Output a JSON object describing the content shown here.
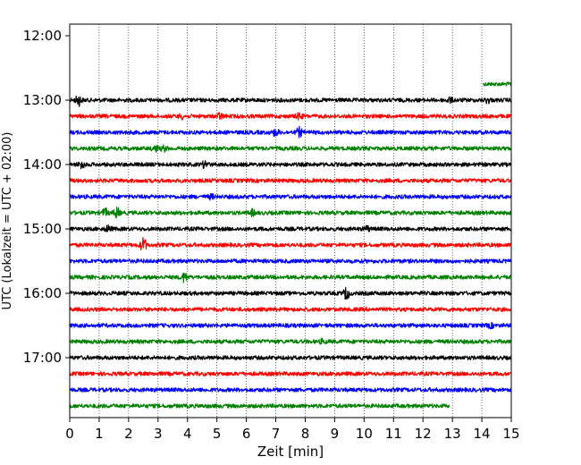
{
  "chart_data": {
    "type": "line",
    "title": "",
    "xlabel": "Zeit  [min]",
    "ylabel": "UTC (Lokalzeit = UTC + 02:00)",
    "xlim": [
      0,
      15
    ],
    "x_ticks": [
      "0",
      "1",
      "2",
      "3",
      "4",
      "5",
      "6",
      "7",
      "8",
      "9",
      "10",
      "11",
      "12",
      "13",
      "14",
      "15"
    ],
    "y_ticks": [
      "12:00",
      "13:00",
      "14:00",
      "15:00",
      "16:00",
      "17:00"
    ],
    "grid": "vertical dotted",
    "colors": {
      "black": "#000000",
      "red": "#ff0000",
      "blue": "#0000ff",
      "green": "#008000"
    },
    "traces": [
      {
        "start": "12:45",
        "color": "green",
        "x_start": 14.05,
        "x_end": 15,
        "events": []
      },
      {
        "start": "13:00",
        "color": "black",
        "x_start": 0,
        "x_end": 15,
        "events": [
          [
            0.3,
            5.5
          ],
          [
            12.9,
            2.5
          ],
          [
            14.2,
            2.5
          ]
        ]
      },
      {
        "start": "13:15",
        "color": "red",
        "x_start": 0,
        "x_end": 15,
        "events": [
          [
            5.1,
            3
          ],
          [
            7.8,
            3
          ],
          [
            3.8,
            2
          ]
        ]
      },
      {
        "start": "13:30",
        "color": "blue",
        "x_start": 0,
        "x_end": 15,
        "events": [
          [
            7.0,
            3.5
          ],
          [
            7.8,
            4.5
          ]
        ]
      },
      {
        "start": "13:45",
        "color": "green",
        "x_start": 0,
        "x_end": 15,
        "events": [
          [
            2.9,
            3
          ],
          [
            3.2,
            2.5
          ]
        ]
      },
      {
        "start": "14:00",
        "color": "black",
        "x_start": 0,
        "x_end": 15,
        "events": [
          [
            0.4,
            4
          ],
          [
            4.6,
            3.5
          ]
        ]
      },
      {
        "start": "14:15",
        "color": "red",
        "x_start": 0,
        "x_end": 15,
        "events": []
      },
      {
        "start": "14:30",
        "color": "blue",
        "x_start": 0,
        "x_end": 15,
        "events": [
          [
            4.8,
            2
          ]
        ]
      },
      {
        "start": "14:45",
        "color": "green",
        "x_start": 0,
        "x_end": 15,
        "events": [
          [
            1.2,
            4
          ],
          [
            1.6,
            5
          ],
          [
            6.2,
            3
          ]
        ]
      },
      {
        "start": "15:00",
        "color": "black",
        "x_start": 0,
        "x_end": 15,
        "events": [
          [
            1.3,
            3
          ],
          [
            10.1,
            2.5
          ]
        ]
      },
      {
        "start": "15:15",
        "color": "red",
        "x_start": 0,
        "x_end": 15,
        "events": [
          [
            2.5,
            8
          ]
        ]
      },
      {
        "start": "15:30",
        "color": "blue",
        "x_start": 0,
        "x_end": 15,
        "events": []
      },
      {
        "start": "15:45",
        "color": "green",
        "x_start": 0,
        "x_end": 15,
        "events": [
          [
            3.9,
            5
          ]
        ]
      },
      {
        "start": "16:00",
        "color": "black",
        "x_start": 0,
        "x_end": 15,
        "events": [
          [
            9.4,
            6
          ]
        ]
      },
      {
        "start": "16:15",
        "color": "red",
        "x_start": 0,
        "x_end": 15,
        "events": []
      },
      {
        "start": "16:30",
        "color": "blue",
        "x_start": 0,
        "x_end": 15,
        "events": [
          [
            14.3,
            2
          ]
        ]
      },
      {
        "start": "16:45",
        "color": "green",
        "x_start": 0,
        "x_end": 15,
        "events": [
          [
            8.6,
            2
          ]
        ]
      },
      {
        "start": "17:00",
        "color": "black",
        "x_start": 0,
        "x_end": 15,
        "events": []
      },
      {
        "start": "17:15",
        "color": "red",
        "x_start": 0,
        "x_end": 15,
        "events": []
      },
      {
        "start": "17:30",
        "color": "blue",
        "x_start": 0,
        "x_end": 15,
        "events": []
      },
      {
        "start": "17:45",
        "color": "green",
        "x_start": 0,
        "x_end": 12.9,
        "events": []
      }
    ]
  }
}
